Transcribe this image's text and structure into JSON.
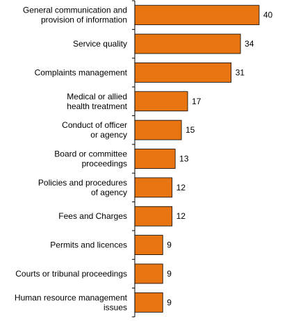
{
  "chart_data": {
    "type": "bar",
    "orientation": "horizontal",
    "title": "",
    "xlabel": "",
    "ylabel": "",
    "categories": [
      [
        "General communication and",
        "provision of information"
      ],
      [
        "Service quality"
      ],
      [
        "Complaints management"
      ],
      [
        "Medical or allied",
        "health treatment"
      ],
      [
        "Conduct of officer",
        "or agency"
      ],
      [
        "Board or committee",
        "proceedings"
      ],
      [
        "Policies and procedures",
        "of agency"
      ],
      [
        "Fees and Charges"
      ],
      [
        "Permits and licences"
      ],
      [
        "Courts or tribunal proceedings"
      ],
      [
        "Human resource management",
        "issues"
      ]
    ],
    "values": [
      40,
      34,
      31,
      17,
      15,
      13,
      12,
      12,
      9,
      9,
      9
    ],
    "value_labels": [
      "40",
      "34",
      "31",
      "17",
      "15",
      "13",
      "12",
      "12",
      "9",
      "9",
      "9"
    ],
    "xlim": [
      0,
      45
    ],
    "grid": false,
    "legend": "none",
    "bar_color": "#E87511",
    "bar_edge_color": "#000000"
  }
}
